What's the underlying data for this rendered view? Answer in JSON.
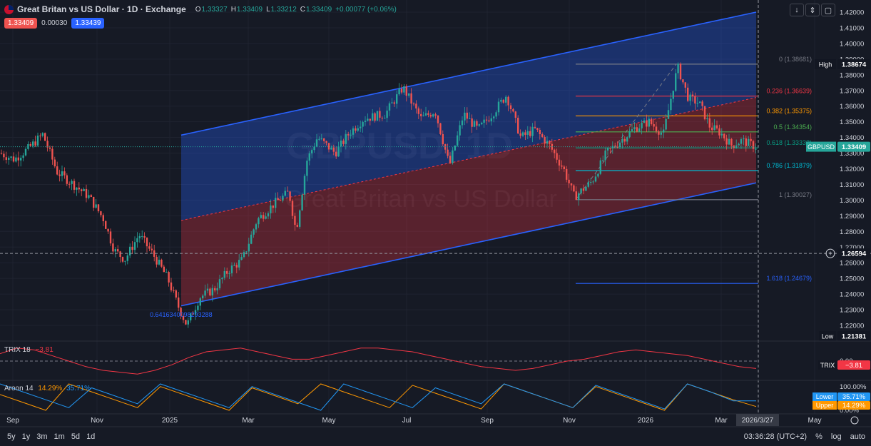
{
  "header": {
    "title": "Great Britan vs US Dollar · 1D · Exchange",
    "o_label": "O",
    "o_value": "1.33327",
    "h_label": "H",
    "h_value": "1.33409",
    "l_label": "L",
    "l_value": "1.33212",
    "c_label": "C",
    "c_value": "1.33409",
    "change": "+0.00077 (+0.06%)"
  },
  "trade": {
    "sell": "1.33409",
    "spread": "0.00030",
    "buy": "1.33439"
  },
  "toolbar": {
    "icon1": "arrow-down-icon",
    "icon2": "expand-icon",
    "icon3": "fullscreen-icon"
  },
  "watermark": {
    "symbol": "GBPUSD, 1D",
    "name": "Great Britan vs US Dollar"
  },
  "colors": {
    "up": "#26a69a",
    "down": "#ef5350",
    "channel_line": "#2962ff",
    "trix": "#f23645",
    "aroon_up": "#ff9800",
    "aroon_down": "#2196f3"
  },
  "chart_data": [
    {
      "type": "candlestick",
      "symbol": "GBPUSD",
      "xticks": [
        "Sep",
        "Nov",
        "2025",
        "Mar",
        "May",
        "Jul",
        "Sep",
        "Nov",
        "2026",
        "Mar",
        "May"
      ],
      "yticks": [
        "1.42000",
        "1.41000",
        "1.40000",
        "1.39000",
        "1.38000",
        "1.37000",
        "1.36000",
        "1.35000",
        "1.34000",
        "1.33000",
        "1.32000",
        "1.31000",
        "1.30000",
        "1.29000",
        "1.28000",
        "1.27000",
        "1.26000",
        "1.25000",
        "1.24000",
        "1.23000",
        "1.22000"
      ],
      "ylim": [
        1.205,
        1.425
      ],
      "path": [
        {
          "x": 0,
          "y": 1.33
        },
        {
          "x": 20,
          "y": 1.326
        },
        {
          "x": 40,
          "y": 1.333
        },
        {
          "x": 60,
          "y": 1.342
        },
        {
          "x": 80,
          "y": 1.318
        },
        {
          "x": 100,
          "y": 1.311
        },
        {
          "x": 125,
          "y": 1.302
        },
        {
          "x": 145,
          "y": 1.288
        },
        {
          "x": 160,
          "y": 1.268
        },
        {
          "x": 175,
          "y": 1.262
        },
        {
          "x": 195,
          "y": 1.278
        },
        {
          "x": 215,
          "y": 1.265
        },
        {
          "x": 235,
          "y": 1.25
        },
        {
          "x": 250,
          "y": 1.232
        },
        {
          "x": 262,
          "y": 1.22
        },
        {
          "x": 280,
          "y": 1.238
        },
        {
          "x": 300,
          "y": 1.243
        },
        {
          "x": 320,
          "y": 1.255
        },
        {
          "x": 340,
          "y": 1.262
        },
        {
          "x": 360,
          "y": 1.287
        },
        {
          "x": 385,
          "y": 1.298
        },
        {
          "x": 405,
          "y": 1.305
        },
        {
          "x": 415,
          "y": 1.28
        },
        {
          "x": 430,
          "y": 1.325
        },
        {
          "x": 445,
          "y": 1.34
        },
        {
          "x": 470,
          "y": 1.33
        },
        {
          "x": 490,
          "y": 1.343
        },
        {
          "x": 510,
          "y": 1.352
        },
        {
          "x": 540,
          "y": 1.355
        },
        {
          "x": 565,
          "y": 1.372
        },
        {
          "x": 590,
          "y": 1.352
        },
        {
          "x": 610,
          "y": 1.357
        },
        {
          "x": 630,
          "y": 1.322
        },
        {
          "x": 650,
          "y": 1.355
        },
        {
          "x": 670,
          "y": 1.345
        },
        {
          "x": 690,
          "y": 1.355
        },
        {
          "x": 710,
          "y": 1.367
        },
        {
          "x": 730,
          "y": 1.34
        },
        {
          "x": 750,
          "y": 1.345
        },
        {
          "x": 770,
          "y": 1.335
        },
        {
          "x": 790,
          "y": 1.32
        },
        {
          "x": 805,
          "y": 1.302
        },
        {
          "x": 830,
          "y": 1.312
        },
        {
          "x": 850,
          "y": 1.33
        },
        {
          "x": 870,
          "y": 1.338
        },
        {
          "x": 890,
          "y": 1.346
        },
        {
          "x": 910,
          "y": 1.35
        },
        {
          "x": 930,
          "y": 1.342
        },
        {
          "x": 945,
          "y": 1.375
        },
        {
          "x": 950,
          "y": 1.385
        },
        {
          "x": 965,
          "y": 1.365
        },
        {
          "x": 980,
          "y": 1.362
        },
        {
          "x": 995,
          "y": 1.347
        },
        {
          "x": 1010,
          "y": 1.343
        },
        {
          "x": 1025,
          "y": 1.335
        },
        {
          "x": 1040,
          "y": 1.338
        },
        {
          "x": 1060,
          "y": 1.334
        }
      ],
      "channel": {
        "upper": [
          {
            "x": 254,
            "y": 1.3415
          },
          {
            "x": 1060,
            "y": 1.42
          }
        ],
        "lower": [
          {
            "x": 254,
            "y": 1.2325
          },
          {
            "x": 1060,
            "y": 1.311
          }
        ]
      },
      "fib": {
        "levels": [
          {
            "ratio": "0",
            "value": "1.38681",
            "label": "0 (1.38681)",
            "y": 1.38681,
            "color": "#787b86"
          },
          {
            "ratio": "0.236",
            "value": "1.36639",
            "label": "0.236 (1.36639)",
            "y": 1.36639,
            "color": "#f23645"
          },
          {
            "ratio": "0.382",
            "value": "1.35375",
            "label": "0.382 (1.35375)",
            "y": 1.35375,
            "color": "#ff9800"
          },
          {
            "ratio": "0.5",
            "value": "1.34354",
            "label": "0.5 (1.34354)",
            "y": 1.34354,
            "color": "#4caf50"
          },
          {
            "ratio": "0.618",
            "value": "1.33333",
            "label": "0.618 (1.33333)",
            "y": 1.33333,
            "color": "#089981"
          },
          {
            "ratio": "0.786",
            "value": "1.31879",
            "label": "0.786 (1.31879)",
            "y": 1.31879,
            "color": "#00bcd4"
          },
          {
            "ratio": "1",
            "value": "1.30027",
            "label": "1 (1.30027)",
            "y": 1.30027,
            "color": "#787b86"
          },
          {
            "ratio": "1.618",
            "value": "1.24679",
            "label": "1.618 (1.24679)",
            "y": 1.24679,
            "color": "#2962ff"
          }
        ]
      },
      "annotation": "0.6416340098293288",
      "price_labels": {
        "high_label": "High",
        "high_value": "1.38674",
        "symbol_label": "GBPUSD",
        "last_value": "1.33409",
        "crosshair_value": "1.26594",
        "low_label": "Low",
        "low_value": "1.21381"
      }
    },
    {
      "type": "line",
      "name": "TRIX",
      "label": "TRIX 18",
      "value": "−3.81",
      "ytick": "0.00",
      "series": [
        {
          "name": "TRIX",
          "values": [
            8,
            14,
            12,
            6,
            0,
            -6,
            -10,
            -12,
            -14,
            -10,
            -4,
            4,
            10,
            12,
            14,
            10,
            6,
            2,
            2,
            6,
            10,
            14,
            14,
            12,
            10,
            6,
            2,
            -2,
            -6,
            -8,
            -10,
            -8,
            -4,
            0,
            2,
            6,
            10,
            12,
            10,
            8,
            6,
            2,
            -2,
            -6,
            -8
          ]
        }
      ]
    },
    {
      "type": "line",
      "name": "Aroon",
      "label": "Aroon 14",
      "upper_value": "14.29%",
      "lower_value": "35.71%",
      "legend": {
        "lower": "Lower",
        "upper": "Upper"
      },
      "yticks": [
        "100.00%",
        "0.00%"
      ],
      "series": [
        {
          "name": "Upper",
          "values": [
            60,
            30,
            0,
            100,
            70,
            40,
            10,
            90,
            60,
            30,
            0,
            85,
            55,
            25,
            100,
            70,
            40,
            10,
            95,
            65,
            35,
            5,
            100,
            70,
            40,
            10,
            90,
            60,
            30,
            0,
            100,
            70,
            40,
            14.29
          ]
        },
        {
          "name": "Lower",
          "values": [
            100,
            70,
            40,
            10,
            85,
            55,
            25,
            100,
            70,
            40,
            10,
            90,
            60,
            30,
            0,
            100,
            70,
            40,
            10,
            85,
            55,
            25,
            100,
            70,
            40,
            10,
            95,
            65,
            35,
            5,
            100,
            70,
            35.71,
            35.71
          ]
        }
      ]
    }
  ],
  "time": {
    "cursor_date": "2026/3/27",
    "clock": "03:36:28 (UTC+2)"
  },
  "ranges": [
    "5y",
    "1y",
    "3m",
    "1m",
    "5d",
    "1d"
  ],
  "controls": {
    "percent": "%",
    "log": "log",
    "auto": "auto"
  }
}
